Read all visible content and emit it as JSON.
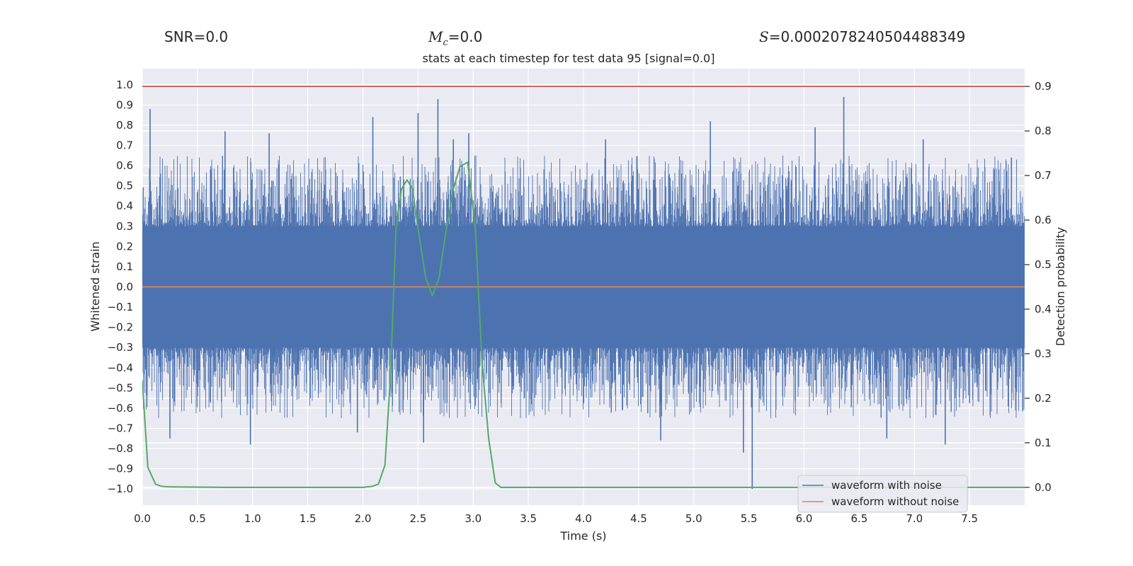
{
  "header": {
    "snr_label": "SNR",
    "snr_value": "=0.0",
    "mc_symbol": "M",
    "mc_sub": "c",
    "mc_value": "=0.0",
    "s_symbol": "S",
    "s_value": "=0.0002078240504488349"
  },
  "chart_data": {
    "type": "line",
    "title": "stats at each timestep for test data 95 [signal=0.0]",
    "xlabel": "Time (s)",
    "ylabel": "Whitened strain",
    "y2label": "Detection probability",
    "xlim": [
      0.0,
      8.0
    ],
    "ylim": [
      -1.08,
      1.08
    ],
    "y2lim": [
      -0.04,
      0.94
    ],
    "xticks": [
      0.0,
      0.5,
      1.0,
      1.5,
      2.0,
      2.5,
      3.0,
      3.5,
      4.0,
      4.5,
      5.0,
      5.5,
      6.0,
      6.5,
      7.0,
      7.5
    ],
    "xtick_labels": [
      "0.0",
      "0.5",
      "1.0",
      "1.5",
      "2.0",
      "2.5",
      "3.0",
      "3.5",
      "4.0",
      "4.5",
      "5.0",
      "5.5",
      "6.0",
      "6.5",
      "7.0",
      "7.5"
    ],
    "yticks": [
      1.0,
      0.9,
      0.8,
      0.7,
      0.6,
      0.5,
      0.4,
      0.3,
      0.2,
      0.1,
      0.0,
      -0.1,
      -0.2,
      -0.3,
      -0.4,
      -0.5,
      -0.6,
      -0.7,
      -0.8,
      -0.9,
      -1.0
    ],
    "ytick_labels": [
      "1.0",
      "0.9",
      "0.8",
      "0.7",
      "0.6",
      "0.5",
      "0.4",
      "0.3",
      "0.2",
      "0.1",
      "0.0",
      "−0.1",
      "−0.2",
      "−0.3",
      "−0.4",
      "−0.5",
      "−0.6",
      "−0.7",
      "−0.8",
      "−0.9",
      "−1.0"
    ],
    "y2ticks": [
      0.9,
      0.8,
      0.7,
      0.6,
      0.5,
      0.4,
      0.3,
      0.2,
      0.1,
      0.0
    ],
    "y2tick_labels": [
      "0.9",
      "0.8",
      "0.7",
      "0.6",
      "0.5",
      "0.4",
      "0.3",
      "0.2",
      "0.1",
      "0.0"
    ],
    "threshold": 0.9,
    "noise_band": {
      "low": -0.3,
      "high": 0.3
    },
    "noise_spikes": [
      {
        "x": 0.07,
        "y": 0.88
      },
      {
        "x": 0.25,
        "y": -0.75
      },
      {
        "x": 0.75,
        "y": 0.77
      },
      {
        "x": 0.98,
        "y": -0.78
      },
      {
        "x": 1.15,
        "y": 0.76
      },
      {
        "x": 1.95,
        "y": -0.72
      },
      {
        "x": 2.09,
        "y": 0.84
      },
      {
        "x": 2.5,
        "y": 0.86
      },
      {
        "x": 2.55,
        "y": -0.77
      },
      {
        "x": 2.68,
        "y": 0.93
      },
      {
        "x": 2.82,
        "y": 0.73
      },
      {
        "x": 2.96,
        "y": 0.76
      },
      {
        "x": 4.2,
        "y": 0.73
      },
      {
        "x": 4.7,
        "y": -0.76
      },
      {
        "x": 5.15,
        "y": 0.82
      },
      {
        "x": 5.45,
        "y": -0.82
      },
      {
        "x": 5.53,
        "y": -1.0
      },
      {
        "x": 6.1,
        "y": 0.79
      },
      {
        "x": 6.36,
        "y": 0.94
      },
      {
        "x": 6.75,
        "y": -0.75
      },
      {
        "x": 7.08,
        "y": 0.73
      },
      {
        "x": 7.28,
        "y": -0.78
      },
      {
        "x": 7.88,
        "y": 0.64
      }
    ],
    "series": [
      {
        "name": "waveform with noise",
        "color": "#4c72b0",
        "axis": "left"
      },
      {
        "name": "waveform without noise",
        "color": "#dd8452",
        "axis": "left",
        "x": [
          0.0,
          8.0
        ],
        "y": [
          0.0,
          0.0
        ]
      },
      {
        "name": "detection probability",
        "color": "#55a868",
        "axis": "right",
        "x": [
          0.0,
          0.05,
          0.12,
          0.18,
          0.25,
          0.75,
          1.5,
          2.0,
          2.08,
          2.14,
          2.2,
          2.25,
          2.3,
          2.35,
          2.4,
          2.45,
          2.5,
          2.57,
          2.63,
          2.69,
          2.75,
          2.82,
          2.88,
          2.95,
          3.02,
          3.08,
          3.14,
          3.2,
          3.25,
          4.0,
          6.0,
          8.0
        ],
        "y": [
          0.24,
          0.045,
          0.007,
          0.002,
          0.001,
          0.0,
          0.0,
          0.0,
          0.002,
          0.007,
          0.05,
          0.25,
          0.58,
          0.67,
          0.69,
          0.67,
          0.58,
          0.47,
          0.43,
          0.47,
          0.57,
          0.67,
          0.72,
          0.73,
          0.58,
          0.28,
          0.11,
          0.01,
          0.0,
          0.0,
          0.0,
          0.0
        ]
      }
    ],
    "legend": {
      "placement": "lower-right",
      "entries": [
        "waveform with noise",
        "waveform without noise"
      ]
    }
  },
  "colors": {
    "plot_bg": "#eaeaf2",
    "grid": "#ffffff",
    "noise": "#4c72b0",
    "clean": "#dd8452",
    "prob": "#55a868",
    "threshold": "#c44e52"
  }
}
